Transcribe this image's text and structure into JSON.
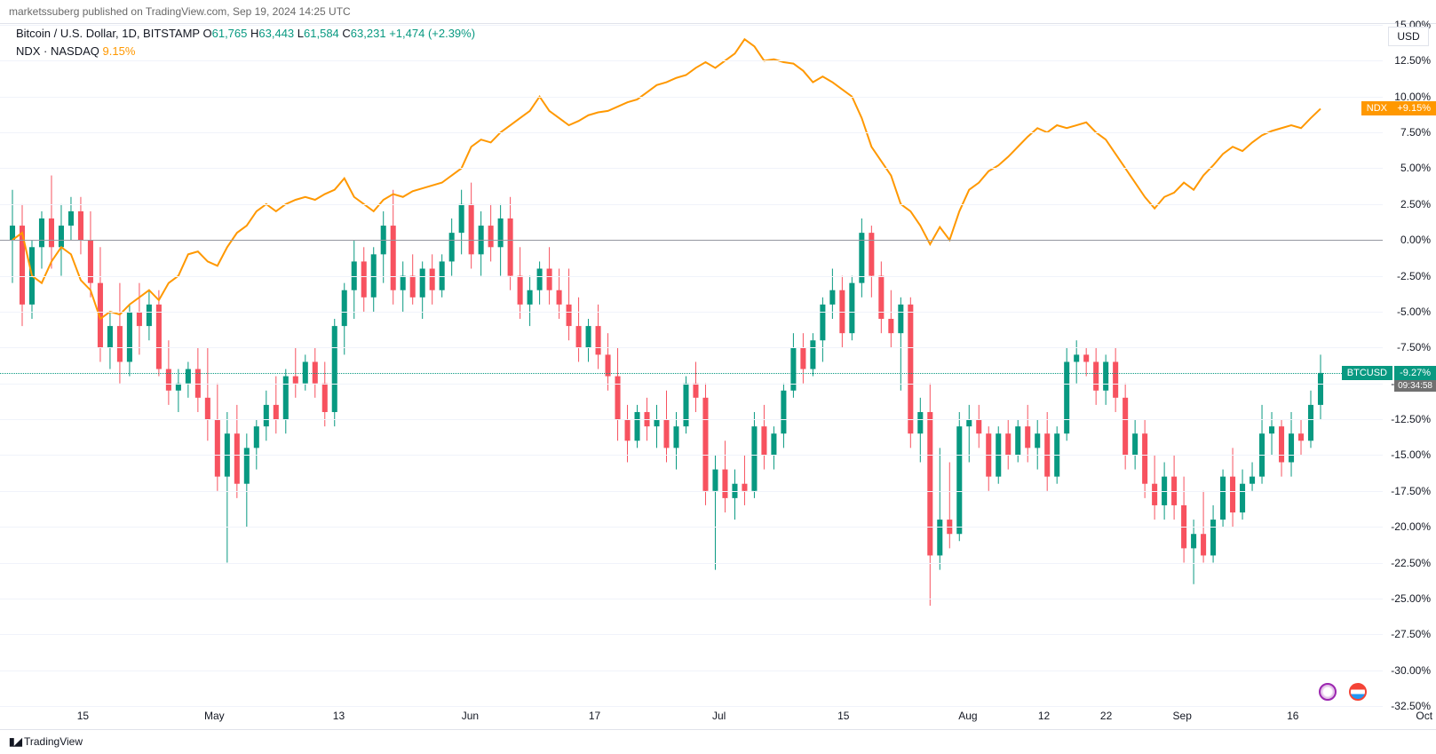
{
  "header": {
    "author": "marketssuberg",
    "published_on": " published on ",
    "site": "TradingView.com",
    "date": ", Sep 19, 2024 14:25 UTC"
  },
  "symbol": {
    "name": "Bitcoin / U.S. Dollar, 1D, BITSTAMP",
    "o_label": "O",
    "o": "61,765",
    "h_label": "H",
    "h": "63,443",
    "l_label": "L",
    "l": "61,584",
    "c_label": "C",
    "c": "63,231",
    "chg": "+1,474",
    "chg_pct": "(+2.39%)"
  },
  "indicator": {
    "label": "NDX · NASDAQ",
    "value": "9.15%"
  },
  "usd_btn": "USD",
  "y_axis": {
    "min": -32.5,
    "max": 15.0,
    "step": 2.5,
    "ticks": [
      "15.00%",
      "12.50%",
      "10.00%",
      "7.50%",
      "5.00%",
      "2.50%",
      "0.00%",
      "-2.50%",
      "-5.00%",
      "-7.50%",
      "-10.00%",
      "-12.50%",
      "-15.00%",
      "-17.50%",
      "-20.00%",
      "-22.50%",
      "-25.00%",
      "-27.50%",
      "-30.00%",
      "-32.50%"
    ],
    "tick_vals": [
      15.0,
      12.5,
      10.0,
      7.5,
      5.0,
      2.5,
      0.0,
      -2.5,
      -5.0,
      -7.5,
      -10.0,
      -12.5,
      -15.0,
      -17.5,
      -20.0,
      -22.5,
      -25.0,
      -27.5,
      -30.0,
      -32.5
    ]
  },
  "x_axis": {
    "ticks": [
      "15",
      "May",
      "13",
      "Jun",
      "17",
      "Jul",
      "15",
      "Aug",
      "12",
      "22",
      "Sep",
      "16",
      "Oct"
    ],
    "tick_pos": [
      0.06,
      0.155,
      0.245,
      0.34,
      0.43,
      0.52,
      0.61,
      0.7,
      0.755,
      0.8,
      0.855,
      0.935,
      1.03
    ]
  },
  "badges": {
    "ndx_label": "NDX",
    "ndx_val": "+9.15%",
    "ndx_y": 9.15,
    "btc_label": "BTCUSD",
    "btc_val": "-9.27%",
    "btc_y": -9.27,
    "btc_time": "09:34:58"
  },
  "colors": {
    "up": "#089981",
    "down": "#f7525f",
    "ndx": "#ff9800",
    "grid": "#f0f3fa",
    "zero": "#9598a1"
  },
  "candles": [
    {
      "o": 0.0,
      "h": 3.5,
      "l": -3.0,
      "c": 1.0
    },
    {
      "o": 1.0,
      "h": 2.5,
      "l": -6.0,
      "c": -4.5
    },
    {
      "o": -4.5,
      "h": 0.0,
      "l": -5.5,
      "c": -0.5
    },
    {
      "o": -0.5,
      "h": 2.0,
      "l": -2.0,
      "c": 1.5
    },
    {
      "o": 1.5,
      "h": 4.5,
      "l": -2.0,
      "c": -0.5
    },
    {
      "o": -0.5,
      "h": 2.5,
      "l": -2.5,
      "c": 1.0
    },
    {
      "o": 1.0,
      "h": 3.0,
      "l": 0.0,
      "c": 2.0
    },
    {
      "o": 2.0,
      "h": 3.0,
      "l": -1.0,
      "c": 0.0
    },
    {
      "o": 0.0,
      "h": 2.0,
      "l": -4.0,
      "c": -3.0
    },
    {
      "o": -3.0,
      "h": -0.5,
      "l": -8.5,
      "c": -7.5
    },
    {
      "o": -7.5,
      "h": -5.0,
      "l": -9.0,
      "c": -6.0
    },
    {
      "o": -6.0,
      "h": -3.0,
      "l": -10.0,
      "c": -8.5
    },
    {
      "o": -8.5,
      "h": -4.5,
      "l": -9.5,
      "c": -5.0
    },
    {
      "o": -5.0,
      "h": -3.0,
      "l": -8.0,
      "c": -6.0
    },
    {
      "o": -6.0,
      "h": -3.5,
      "l": -7.0,
      "c": -4.5
    },
    {
      "o": -4.5,
      "h": -3.5,
      "l": -9.5,
      "c": -9.0
    },
    {
      "o": -9.0,
      "h": -7.0,
      "l": -11.5,
      "c": -10.5
    },
    {
      "o": -10.5,
      "h": -9.0,
      "l": -12.0,
      "c": -10.0
    },
    {
      "o": -10.0,
      "h": -8.5,
      "l": -11.0,
      "c": -9.0
    },
    {
      "o": -9.0,
      "h": -7.5,
      "l": -12.0,
      "c": -11.0
    },
    {
      "o": -11.0,
      "h": -7.5,
      "l": -14.0,
      "c": -12.5
    },
    {
      "o": -12.5,
      "h": -10.0,
      "l": -17.5,
      "c": -16.5
    },
    {
      "o": -16.5,
      "h": -12.0,
      "l": -22.5,
      "c": -13.5
    },
    {
      "o": -13.5,
      "h": -11.5,
      "l": -18.0,
      "c": -17.0
    },
    {
      "o": -17.0,
      "h": -13.5,
      "l": -20.0,
      "c": -14.5
    },
    {
      "o": -14.5,
      "h": -12.5,
      "l": -16.0,
      "c": -13.0
    },
    {
      "o": -13.0,
      "h": -10.5,
      "l": -14.0,
      "c": -11.5
    },
    {
      "o": -11.5,
      "h": -9.5,
      "l": -13.5,
      "c": -12.5
    },
    {
      "o": -12.5,
      "h": -9.0,
      "l": -13.5,
      "c": -9.5
    },
    {
      "o": -9.5,
      "h": -7.5,
      "l": -11.0,
      "c": -10.0
    },
    {
      "o": -10.0,
      "h": -8.0,
      "l": -10.5,
      "c": -8.5
    },
    {
      "o": -8.5,
      "h": -7.5,
      "l": -11.0,
      "c": -10.0
    },
    {
      "o": -10.0,
      "h": -8.5,
      "l": -13.0,
      "c": -12.0
    },
    {
      "o": -12.0,
      "h": -5.5,
      "l": -13.0,
      "c": -6.0
    },
    {
      "o": -6.0,
      "h": -3.0,
      "l": -8.0,
      "c": -3.5
    },
    {
      "o": -3.5,
      "h": 0.0,
      "l": -5.5,
      "c": -1.5
    },
    {
      "o": -1.5,
      "h": -0.5,
      "l": -5.0,
      "c": -4.0
    },
    {
      "o": -4.0,
      "h": -0.5,
      "l": -5.0,
      "c": -1.0
    },
    {
      "o": -1.0,
      "h": 2.0,
      "l": -3.0,
      "c": 1.0
    },
    {
      "o": 1.0,
      "h": 3.5,
      "l": -4.5,
      "c": -3.5
    },
    {
      "o": -3.5,
      "h": -1.5,
      "l": -5.0,
      "c": -2.5
    },
    {
      "o": -2.5,
      "h": -1.0,
      "l": -4.5,
      "c": -4.0
    },
    {
      "o": -4.0,
      "h": -1.5,
      "l": -5.5,
      "c": -2.0
    },
    {
      "o": -2.0,
      "h": -1.0,
      "l": -4.5,
      "c": -3.5
    },
    {
      "o": -3.5,
      "h": -1.0,
      "l": -4.0,
      "c": -1.5
    },
    {
      "o": -1.5,
      "h": 1.5,
      "l": -2.5,
      "c": 0.5
    },
    {
      "o": 0.5,
      "h": 3.5,
      "l": -1.0,
      "c": 2.5
    },
    {
      "o": 2.5,
      "h": 4.0,
      "l": -2.0,
      "c": -1.0
    },
    {
      "o": -1.0,
      "h": 2.0,
      "l": -2.5,
      "c": 1.0
    },
    {
      "o": 1.0,
      "h": 2.5,
      "l": -1.5,
      "c": -0.5
    },
    {
      "o": -0.5,
      "h": 2.5,
      "l": -2.5,
      "c": 1.5
    },
    {
      "o": 1.5,
      "h": 3.0,
      "l": -3.5,
      "c": -2.5
    },
    {
      "o": -2.5,
      "h": -0.5,
      "l": -5.5,
      "c": -4.5
    },
    {
      "o": -4.5,
      "h": -2.5,
      "l": -6.0,
      "c": -3.5
    },
    {
      "o": -3.5,
      "h": -1.5,
      "l": -4.5,
      "c": -2.0
    },
    {
      "o": -2.0,
      "h": -0.5,
      "l": -4.5,
      "c": -3.5
    },
    {
      "o": -3.5,
      "h": -2.0,
      "l": -5.5,
      "c": -4.5
    },
    {
      "o": -4.5,
      "h": -2.0,
      "l": -7.0,
      "c": -6.0
    },
    {
      "o": -6.0,
      "h": -4.0,
      "l": -8.5,
      "c": -7.5
    },
    {
      "o": -7.5,
      "h": -5.5,
      "l": -8.5,
      "c": -6.0
    },
    {
      "o": -6.0,
      "h": -4.5,
      "l": -9.0,
      "c": -8.0
    },
    {
      "o": -8.0,
      "h": -6.5,
      "l": -10.5,
      "c": -9.5
    },
    {
      "o": -9.5,
      "h": -7.5,
      "l": -14.0,
      "c": -12.5
    },
    {
      "o": -12.5,
      "h": -11.5,
      "l": -15.5,
      "c": -14.0
    },
    {
      "o": -14.0,
      "h": -11.5,
      "l": -14.5,
      "c": -12.0
    },
    {
      "o": -12.0,
      "h": -11.0,
      "l": -14.0,
      "c": -13.0
    },
    {
      "o": -13.0,
      "h": -11.5,
      "l": -14.5,
      "c": -12.5
    },
    {
      "o": -12.5,
      "h": -10.5,
      "l": -15.5,
      "c": -14.5
    },
    {
      "o": -14.5,
      "h": -12.0,
      "l": -16.0,
      "c": -13.0
    },
    {
      "o": -13.0,
      "h": -9.5,
      "l": -13.5,
      "c": -10.0
    },
    {
      "o": -10.0,
      "h": -8.5,
      "l": -12.0,
      "c": -11.0
    },
    {
      "o": -11.0,
      "h": -10.0,
      "l": -18.5,
      "c": -17.5
    },
    {
      "o": -17.5,
      "h": -15.0,
      "l": -23.0,
      "c": -16.0
    },
    {
      "o": -16.0,
      "h": -14.0,
      "l": -19.0,
      "c": -18.0
    },
    {
      "o": -18.0,
      "h": -16.0,
      "l": -19.5,
      "c": -17.0
    },
    {
      "o": -17.0,
      "h": -15.0,
      "l": -18.5,
      "c": -17.5
    },
    {
      "o": -17.5,
      "h": -12.0,
      "l": -18.0,
      "c": -13.0
    },
    {
      "o": -13.0,
      "h": -11.5,
      "l": -16.0,
      "c": -15.0
    },
    {
      "o": -15.0,
      "h": -13.0,
      "l": -16.0,
      "c": -13.5
    },
    {
      "o": -13.5,
      "h": -10.0,
      "l": -14.5,
      "c": -10.5
    },
    {
      "o": -10.5,
      "h": -6.5,
      "l": -11.0,
      "c": -7.5
    },
    {
      "o": -7.5,
      "h": -6.5,
      "l": -10.0,
      "c": -9.0
    },
    {
      "o": -9.0,
      "h": -6.5,
      "l": -9.5,
      "c": -7.0
    },
    {
      "o": -7.0,
      "h": -4.0,
      "l": -8.5,
      "c": -4.5
    },
    {
      "o": -4.5,
      "h": -2.0,
      "l": -5.5,
      "c": -3.5
    },
    {
      "o": -3.5,
      "h": -2.5,
      "l": -7.5,
      "c": -6.5
    },
    {
      "o": -6.5,
      "h": -2.5,
      "l": -7.0,
      "c": -3.0
    },
    {
      "o": -3.0,
      "h": 1.5,
      "l": -4.0,
      "c": 0.5
    },
    {
      "o": 0.5,
      "h": 1.0,
      "l": -4.0,
      "c": -2.5
    },
    {
      "o": -2.5,
      "h": -1.5,
      "l": -6.5,
      "c": -5.5
    },
    {
      "o": -5.5,
      "h": -3.5,
      "l": -7.5,
      "c": -6.5
    },
    {
      "o": -6.5,
      "h": -4.0,
      "l": -10.5,
      "c": -4.5
    },
    {
      "o": -4.5,
      "h": -4.0,
      "l": -14.5,
      "c": -13.5
    },
    {
      "o": -13.5,
      "h": -11.0,
      "l": -15.5,
      "c": -12.0
    },
    {
      "o": -12.0,
      "h": -10.0,
      "l": -25.5,
      "c": -22.0
    },
    {
      "o": -22.0,
      "h": -14.5,
      "l": -23.0,
      "c": -19.5
    },
    {
      "o": -19.5,
      "h": -15.5,
      "l": -21.5,
      "c": -20.5
    },
    {
      "o": -20.5,
      "h": -12.0,
      "l": -21.0,
      "c": -13.0
    },
    {
      "o": -13.0,
      "h": -11.5,
      "l": -15.5,
      "c": -12.5
    },
    {
      "o": -12.5,
      "h": -11.5,
      "l": -14.5,
      "c": -13.5
    },
    {
      "o": -13.5,
      "h": -13.0,
      "l": -17.5,
      "c": -16.5
    },
    {
      "o": -16.5,
      "h": -13.0,
      "l": -17.0,
      "c": -13.5
    },
    {
      "o": -13.5,
      "h": -12.5,
      "l": -16.0,
      "c": -15.0
    },
    {
      "o": -15.0,
      "h": -12.5,
      "l": -15.5,
      "c": -13.0
    },
    {
      "o": -13.0,
      "h": -11.5,
      "l": -15.5,
      "c": -14.5
    },
    {
      "o": -14.5,
      "h": -12.5,
      "l": -16.0,
      "c": -13.5
    },
    {
      "o": -13.5,
      "h": -12.0,
      "l": -17.5,
      "c": -16.5
    },
    {
      "o": -16.5,
      "h": -13.0,
      "l": -17.0,
      "c": -13.5
    },
    {
      "o": -13.5,
      "h": -7.5,
      "l": -14.0,
      "c": -8.5
    },
    {
      "o": -8.5,
      "h": -7.0,
      "l": -10.0,
      "c": -8.0
    },
    {
      "o": -8.0,
      "h": -7.5,
      "l": -9.5,
      "c": -8.5
    },
    {
      "o": -8.5,
      "h": -7.5,
      "l": -11.5,
      "c": -10.5
    },
    {
      "o": -10.5,
      "h": -8.0,
      "l": -11.5,
      "c": -8.5
    },
    {
      "o": -8.5,
      "h": -7.5,
      "l": -12.0,
      "c": -11.0
    },
    {
      "o": -11.0,
      "h": -10.0,
      "l": -16.0,
      "c": -15.0
    },
    {
      "o": -15.0,
      "h": -12.5,
      "l": -16.0,
      "c": -13.5
    },
    {
      "o": -13.5,
      "h": -12.5,
      "l": -18.0,
      "c": -17.0
    },
    {
      "o": -17.0,
      "h": -15.0,
      "l": -19.5,
      "c": -18.5
    },
    {
      "o": -18.5,
      "h": -15.5,
      "l": -19.5,
      "c": -16.5
    },
    {
      "o": -16.5,
      "h": -15.0,
      "l": -19.5,
      "c": -18.5
    },
    {
      "o": -18.5,
      "h": -16.5,
      "l": -22.5,
      "c": -21.5
    },
    {
      "o": -21.5,
      "h": -19.5,
      "l": -24.0,
      "c": -20.5
    },
    {
      "o": -20.5,
      "h": -17.5,
      "l": -22.5,
      "c": -22.0
    },
    {
      "o": -22.0,
      "h": -18.5,
      "l": -22.5,
      "c": -19.5
    },
    {
      "o": -19.5,
      "h": -16.0,
      "l": -20.0,
      "c": -16.5
    },
    {
      "o": -16.5,
      "h": -14.5,
      "l": -20.0,
      "c": -19.0
    },
    {
      "o": -19.0,
      "h": -16.0,
      "l": -19.5,
      "c": -17.0
    },
    {
      "o": -17.0,
      "h": -15.5,
      "l": -17.5,
      "c": -16.5
    },
    {
      "o": -16.5,
      "h": -11.5,
      "l": -17.0,
      "c": -13.5
    },
    {
      "o": -13.5,
      "h": -12.0,
      "l": -15.0,
      "c": -13.0
    },
    {
      "o": -13.0,
      "h": -12.5,
      "l": -16.5,
      "c": -15.5
    },
    {
      "o": -15.5,
      "h": -12.0,
      "l": -16.5,
      "c": -13.5
    },
    {
      "o": -13.5,
      "h": -12.5,
      "l": -15.0,
      "c": -14.0
    },
    {
      "o": -14.0,
      "h": -10.5,
      "l": -14.5,
      "c": -11.5
    },
    {
      "o": -11.5,
      "h": -8.0,
      "l": -12.5,
      "c": -9.27
    }
  ],
  "ndx_line": [
    0.0,
    0.5,
    -2.5,
    -3.0,
    -1.5,
    -0.5,
    -1.0,
    -2.8,
    -3.5,
    -5.5,
    -5.0,
    -5.2,
    -4.5,
    -4.0,
    -3.5,
    -4.2,
    -3.0,
    -2.5,
    -1.0,
    -0.8,
    -1.5,
    -1.8,
    -0.5,
    0.5,
    1.0,
    2.0,
    2.5,
    2.0,
    2.5,
    2.8,
    3.0,
    2.8,
    3.2,
    3.5,
    4.3,
    3.0,
    2.5,
    2.0,
    2.8,
    3.2,
    3.0,
    3.4,
    3.6,
    3.8,
    4.0,
    4.5,
    5.0,
    6.5,
    7.0,
    6.8,
    7.5,
    8.0,
    8.5,
    9.0,
    10.0,
    9.0,
    8.5,
    8.0,
    8.3,
    8.7,
    8.9,
    9.0,
    9.3,
    9.6,
    9.8,
    10.3,
    10.8,
    11.0,
    11.3,
    11.5,
    12.0,
    12.4,
    12.0,
    12.5,
    13.0,
    14.0,
    13.5,
    12.5,
    12.6,
    12.4,
    12.3,
    11.8,
    11.0,
    11.4,
    11.0,
    10.5,
    10.0,
    8.5,
    6.5,
    5.5,
    4.5,
    2.5,
    2.0,
    1.0,
    -0.3,
    0.9,
    0.0,
    2.0,
    3.5,
    4.0,
    4.8,
    5.2,
    5.8,
    6.5,
    7.2,
    7.8,
    7.5,
    8.0,
    7.8,
    8.0,
    8.2,
    7.5,
    7.0,
    6.0,
    5.0,
    4.0,
    3.0,
    2.2,
    3.0,
    3.3,
    4.0,
    3.5,
    4.5,
    5.2,
    6.0,
    6.5,
    6.2,
    6.8,
    7.3,
    7.6,
    7.8,
    8.0,
    7.8,
    8.5,
    9.15
  ],
  "footer": "TradingView"
}
